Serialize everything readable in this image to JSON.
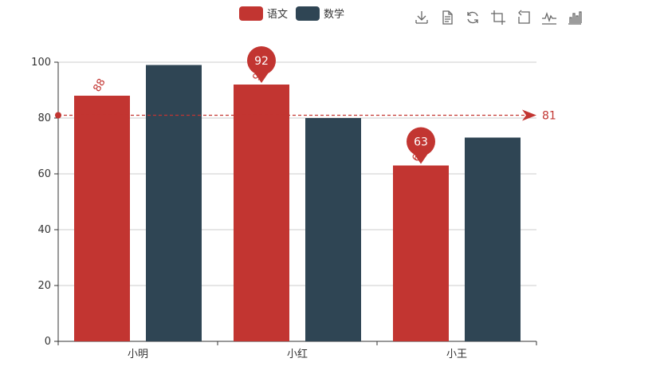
{
  "legend": {
    "items": [
      {
        "label": "语文",
        "color": "#c23531"
      },
      {
        "label": "数学",
        "color": "#2f4554"
      }
    ]
  },
  "toolbox": {
    "icons": [
      "download-icon",
      "data-view-icon",
      "restore-icon",
      "zoom-icon",
      "zoom-reset-icon",
      "line-switch-icon",
      "bar-switch-icon"
    ]
  },
  "chart_data": {
    "type": "bar",
    "categories": [
      "小明",
      "小红",
      "小王"
    ],
    "series": [
      {
        "name": "语文",
        "values": [
          88,
          92,
          63
        ],
        "color": "#c23531"
      },
      {
        "name": "数学",
        "values": [
          99,
          80,
          73
        ],
        "color": "#2f4554"
      }
    ],
    "ylim": [
      0,
      100
    ],
    "yticks": [
      0,
      20,
      40,
      60,
      80,
      100
    ],
    "mark_points": [
      {
        "series": 0,
        "category": 1,
        "value": 92
      },
      {
        "series": 0,
        "category": 2,
        "value": 63
      }
    ],
    "mark_line": {
      "series": 0,
      "value": 81,
      "label": "81"
    },
    "grid": true,
    "legend_position": "top-center",
    "xlabel": "",
    "ylabel": ""
  }
}
